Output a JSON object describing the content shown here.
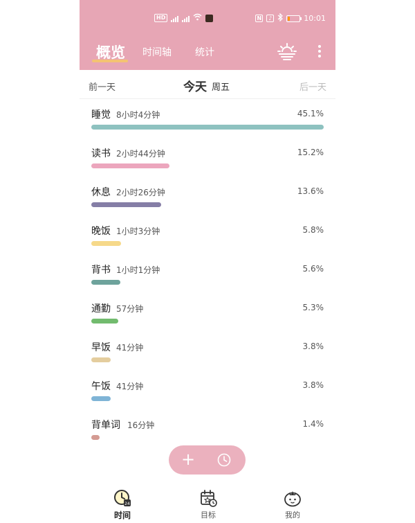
{
  "status_bar": {
    "network_badge": "HD",
    "box1": "N",
    "box2": "♪",
    "time": "10:01",
    "battery_level": 0.2,
    "battery_color": "#ff9800"
  },
  "header": {
    "bg_color": "#e7a6b5",
    "tabs": [
      {
        "label": "概览",
        "active": true
      },
      {
        "label": "时间轴",
        "active": false
      },
      {
        "label": "统计",
        "active": false
      }
    ],
    "right_icons": [
      "sunrise-icon",
      "more-icon"
    ]
  },
  "day_nav": {
    "prev": "前一天",
    "today": "今天",
    "weekday": "周五",
    "next": "后一天"
  },
  "activities": [
    {
      "name": "睡觉",
      "duration": "8小时4分钟",
      "percent": "45.1%",
      "share": 45.1,
      "color": "#8ec2c0"
    },
    {
      "name": "读书",
      "duration": "2小时44分钟",
      "percent": "15.2%",
      "share": 15.2,
      "color": "#eca6bd"
    },
    {
      "name": "休息",
      "duration": "2小时26分钟",
      "percent": "13.6%",
      "share": 13.6,
      "color": "#857ea6"
    },
    {
      "name": "晚饭",
      "duration": "1小时3分钟",
      "percent": "5.8%",
      "share": 5.8,
      "color": "#f6d98a"
    },
    {
      "name": "背书",
      "duration": "1小时1分钟",
      "percent": "5.6%",
      "share": 5.6,
      "color": "#6ea39c"
    },
    {
      "name": "通勤",
      "duration": "57分钟",
      "percent": "5.3%",
      "share": 5.3,
      "color": "#72bb6e"
    },
    {
      "name": "早饭",
      "duration": "41分钟",
      "percent": "3.8%",
      "share": 3.8,
      "color": "#e4cd9e"
    },
    {
      "name": "午饭",
      "duration": "41分钟",
      "percent": "3.8%",
      "share": 3.8,
      "color": "#7fb4d6"
    },
    {
      "name": "背单词",
      "duration": "16分钟",
      "percent": "1.4%",
      "share": 1.4,
      "color": "#d49b93"
    }
  ],
  "fab": {
    "plus": "+",
    "icons": [
      "add-icon",
      "clock-icon"
    ]
  },
  "bottom_nav": [
    {
      "label": "时间",
      "icon": "clock-calendar-icon",
      "badge": "24",
      "active": true
    },
    {
      "label": "目标",
      "icon": "calendar-target-icon",
      "active": false
    },
    {
      "label": "我的",
      "icon": "tomato-icon",
      "active": false
    }
  ]
}
